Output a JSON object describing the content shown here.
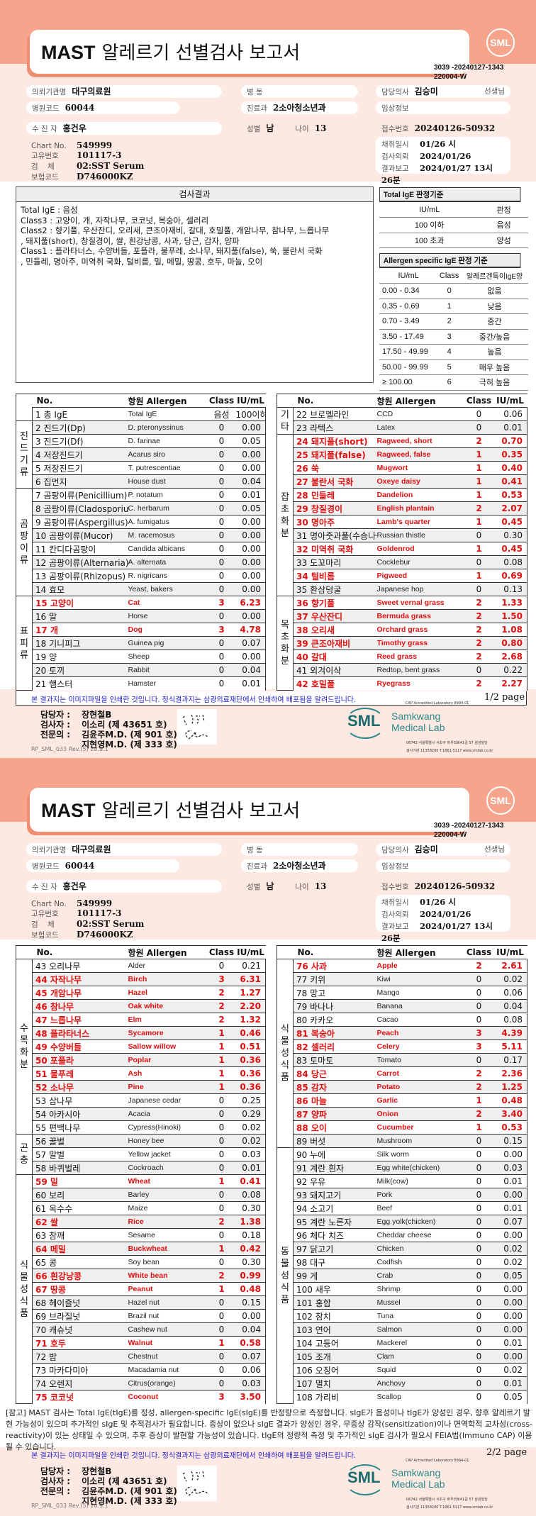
{
  "header": {
    "title_bold": "MAST",
    "title_rest": "알레르기 선별검사 보고서",
    "logo": "SML",
    "doc_id_1": "3039 -20240127-1343",
    "doc_id_2": "220004-W"
  },
  "patient": {
    "institution_label": "의뢰기관명",
    "institution": "대구의료원",
    "hospital_code_label": "병원코드",
    "hospital_code": "60044",
    "name_label": "수 진 자",
    "name": "홍건우",
    "chart_label": "Chart No.",
    "chart": "549999",
    "unique_label": "고유번호",
    "unique": "101117-3",
    "specimen_label": "검    체",
    "specimen": "02:SST Serum",
    "insurance_label": "보험코드",
    "insurance": "D746000KZ",
    "ward_label": "병 동",
    "ward": "",
    "dept_label": "진료과",
    "dept": "2소아청소년과",
    "sex_label": "성별",
    "sex": "남",
    "age_label": "나이",
    "age": "13",
    "doctor_label": "담당의사",
    "doctor": "김승미",
    "doctor_suffix": "선생님",
    "clinical_label": "임상정보",
    "clinical": "",
    "receipt_label": "접수번호",
    "receipt": "20240126-50932",
    "collected_label": "채취일시",
    "collected": "01/26 시",
    "requested_label": "검사의뢰",
    "requested": "2024/01/26",
    "reported_label": "결과보고",
    "reported": "2024/01/27  13시 26분"
  },
  "results": {
    "title": "검사결과",
    "lines": [
      "Total IgE : 음성",
      "Class3 : 고양이, 개, 자작나무, 코코넛, 복숭아, 셀러리",
      "Class2 : 향기풀, 우산잔디, 오리새, 큰조아재비, 갈대, 호밀풀, 개암나무, 참나무, 느릅나무",
      "           , 돼지풀(short), 창질경이, 쌀, 흰강낭콩, 사과, 당근, 감자, 양파",
      "Class1 : 플라타너스, 수양버들, 포플라, 물푸레, 소나무, 돼지풀(false), 쑥, 불란서 국화",
      "           , 민들레, 명아주, 미역취 국화, 털비름, 밀, 메밀, 땅콩, 호두, 마늘, 오이"
    ]
  },
  "criteria": {
    "total": {
      "title": "Total IgE 판정기준",
      "cols": [
        "IU/mL",
        "판정"
      ],
      "rows": [
        [
          "100 이하",
          "음성"
        ],
        [
          "100 초과",
          "양성"
        ]
      ]
    },
    "specific": {
      "title": "Allergen specific IgE 판정 기준",
      "cols": [
        "IU/mL",
        "Class",
        "알레르겐특이IgE양"
      ],
      "rows": [
        [
          "0.00 - 0.34",
          "0",
          "없음"
        ],
        [
          "0.35 - 0.69",
          "1",
          "낮음"
        ],
        [
          "0.70 - 3.49",
          "2",
          "중간"
        ],
        [
          "3.50 - 17.49",
          "3",
          "중간/높음"
        ],
        [
          "17.50 - 49.99",
          "4",
          "높음"
        ],
        [
          "50.00 - 99.99",
          "5",
          "매우 높음"
        ],
        [
          "≥ 100.00",
          "6",
          "극히 높음"
        ]
      ]
    }
  },
  "table_headers": {
    "no": "No.",
    "allergen": "항원 Allergen",
    "class": "Class",
    "iu": "IU/mL"
  },
  "colors": {
    "positive": "#e01010",
    "band": "#f6a48b",
    "background": "#fde9e1",
    "brand": "#2a8a8c"
  },
  "pages": [
    {
      "page_label": "1/2 page",
      "left": [
        {
          "group": "",
          "rows": [
            [
              "1",
              "총 IgE",
              "Total IgE",
              "음성",
              "100이하"
            ]
          ]
        },
        {
          "group": "진드기류",
          "rows": [
            [
              "2",
              "진드기(Dp)",
              "D. pteronyssinus",
              "0",
              "0.00"
            ],
            [
              "3",
              "진드기(Df)",
              "D. farinae",
              "0",
              "0.05"
            ],
            [
              "4",
              "저장진드기",
              "Acarus siro",
              "0",
              "0.00"
            ],
            [
              "5",
              "저장진드기",
              "T. putrescentiae",
              "0",
              "0.00"
            ],
            [
              "6",
              "집먼지",
              "House dust",
              "0",
              "0.04"
            ]
          ]
        },
        {
          "group": "곰팡이류",
          "rows": [
            [
              "7",
              "곰팡이류(Penicillium)",
              "P. notatum",
              "0",
              "0.01"
            ],
            [
              "8",
              "곰팡이류(Cladosporium)",
              "C. herbarum",
              "0",
              "0.05"
            ],
            [
              "9",
              "곰팡이류(Aspergillus)",
              "A. fumigatus",
              "0",
              "0.00"
            ],
            [
              "10",
              "곰팡이류(Mucor)",
              "M. racemosus",
              "0",
              "0.00"
            ],
            [
              "11",
              "칸디다곰팡이",
              "Candida albicans",
              "0",
              "0.00"
            ],
            [
              "12",
              "곰팡이류(Alternaria)",
              "A. alternata",
              "0",
              "0.00"
            ],
            [
              "13",
              "곰팡이류(Rhizopus)",
              "R. nigricans",
              "0",
              "0.00"
            ],
            [
              "14",
              "효모",
              "Yeast, bakers",
              "0",
              "0.00"
            ]
          ]
        },
        {
          "group": "표피류",
          "rows": [
            [
              "15",
              "고양이",
              "Cat",
              "3",
              "6.23"
            ],
            [
              "16",
              "말",
              "Horse",
              "0",
              "0.00"
            ],
            [
              "17",
              "개",
              "Dog",
              "3",
              "4.78"
            ],
            [
              "18",
              "기니피그",
              "Guinea pig",
              "0",
              "0.07"
            ],
            [
              "19",
              "양",
              "Sheep",
              "0",
              "0.00"
            ],
            [
              "20",
              "토끼",
              "Rabbit",
              "0",
              "0.04"
            ],
            [
              "21",
              "햄스터",
              "Hamster",
              "0",
              "0.01"
            ]
          ]
        }
      ],
      "right": [
        {
          "group": "기타",
          "rows": [
            [
              "22",
              "브로멜라인",
              "CCD",
              "0",
              "0.06"
            ],
            [
              "23",
              "라텍스",
              "Latex",
              "0",
              "0.01"
            ]
          ]
        },
        {
          "group": "잡초화분",
          "rows": [
            [
              "24",
              "돼지풀(short)",
              "Ragweed, short",
              "2",
              "0.70"
            ],
            [
              "25",
              "돼지풀(false)",
              "Ragweed, false",
              "1",
              "0.35"
            ],
            [
              "26",
              "쑥",
              "Mugwort",
              "1",
              "0.40"
            ],
            [
              "27",
              "불란서 국화",
              "Oxeye daisy",
              "1",
              "0.41"
            ],
            [
              "28",
              "민들레",
              "Dandelion",
              "1",
              "0.53"
            ],
            [
              "29",
              "창질경이",
              "English plantain",
              "2",
              "2.07"
            ],
            [
              "30",
              "명아주",
              "Lamb's quarter",
              "1",
              "0.45"
            ],
            [
              "31",
              "명아줏과풀(수송나물류)",
              "Russian thistle",
              "0",
              "0.30"
            ],
            [
              "32",
              "미역취 국화",
              "Goldenrod",
              "1",
              "0.45"
            ],
            [
              "33",
              "도꼬마리",
              "Cocklebur",
              "0",
              "0.08"
            ],
            [
              "34",
              "털비름",
              "Pigweed",
              "1",
              "0.69"
            ],
            [
              "35",
              "환삼덩굴",
              "Japanese hop",
              "0",
              "0.13"
            ]
          ]
        },
        {
          "group": "목초화분",
          "rows": [
            [
              "36",
              "향기풀",
              "Sweet vernal grass",
              "2",
              "1.33"
            ],
            [
              "37",
              "우산잔디",
              "Bermuda grass",
              "2",
              "1.50"
            ],
            [
              "38",
              "오리새",
              "Orchard grass",
              "2",
              "1.08"
            ],
            [
              "39",
              "큰조아재비",
              "Timothy grass",
              "2",
              "0.80"
            ],
            [
              "40",
              "갈대",
              "Reed grass",
              "2",
              "2.68"
            ],
            [
              "41",
              "외겨이삭",
              "Redtop, bent grass",
              "0",
              "0.22"
            ],
            [
              "42",
              "호밀풀",
              "Ryegrass",
              "2",
              "2.27"
            ]
          ]
        }
      ]
    },
    {
      "page_label": "2/2 page",
      "left": [
        {
          "group": "수목화분",
          "rows": [
            [
              "43",
              "오리나무",
              "Alder",
              "0",
              "0.21"
            ],
            [
              "44",
              "자작나무",
              "Birch",
              "3",
              "6.31"
            ],
            [
              "45",
              "개암나무",
              "Hazel",
              "2",
              "1.27"
            ],
            [
              "46",
              "참나무",
              "Oak white",
              "2",
              "2.20"
            ],
            [
              "47",
              "느릅나무",
              "Elm",
              "2",
              "1.32"
            ],
            [
              "48",
              "플라타너스",
              "Sycamore",
              "1",
              "0.46"
            ],
            [
              "49",
              "수양버들",
              "Sallow willow",
              "1",
              "0.51"
            ],
            [
              "50",
              "포플라",
              "Poplar",
              "1",
              "0.36"
            ],
            [
              "51",
              "물푸레",
              "Ash",
              "1",
              "0.36"
            ],
            [
              "52",
              "소나무",
              "Pine",
              "1",
              "0.36"
            ],
            [
              "53",
              "삼나무",
              "Japanese cedar",
              "0",
              "0.25"
            ],
            [
              "54",
              "아카시아",
              "Acacia",
              "0",
              "0.29"
            ],
            [
              "55",
              "편백나무",
              "Cypress(Hinoki)",
              "0",
              "0.02"
            ]
          ]
        },
        {
          "group": "곤충",
          "rows": [
            [
              "56",
              "꿀벌",
              "Honey bee",
              "0",
              "0.02"
            ],
            [
              "57",
              "말벌",
              "Yellow jacket",
              "0",
              "0.03"
            ],
            [
              "58",
              "바퀴벌레",
              "Cockroach",
              "0",
              "0.01"
            ]
          ]
        },
        {
          "group": "식물성식품",
          "rows": [
            [
              "59",
              "밀",
              "Wheat",
              "1",
              "0.41"
            ],
            [
              "60",
              "보리",
              "Barley",
              "0",
              "0.08"
            ],
            [
              "61",
              "옥수수",
              "Maize",
              "0",
              "0.30"
            ],
            [
              "62",
              "쌀",
              "Rice",
              "2",
              "1.38"
            ],
            [
              "63",
              "참깨",
              "Sesame",
              "0",
              "0.18"
            ],
            [
              "64",
              "메밀",
              "Buckwheat",
              "1",
              "0.42"
            ],
            [
              "65",
              "콩",
              "Soy bean",
              "0",
              "0.30"
            ],
            [
              "66",
              "흰강낭콩",
              "White bean",
              "2",
              "0.99"
            ],
            [
              "67",
              "땅콩",
              "Peanut",
              "1",
              "0.48"
            ],
            [
              "68",
              "헤이즐넛",
              "Hazel nut",
              "0",
              "0.15"
            ],
            [
              "69",
              "브라질넛",
              "Brazil nut",
              "0",
              "0.00"
            ],
            [
              "70",
              "캐슈넛",
              "Cashew nut",
              "0",
              "0.04"
            ],
            [
              "71",
              "호두",
              "Walnut",
              "1",
              "0.58"
            ],
            [
              "72",
              "밤",
              "Chestnut",
              "0",
              "0.07"
            ],
            [
              "73",
              "마카다미아",
              "Macadamia nut",
              "0",
              "0.06"
            ],
            [
              "74",
              "오렌지",
              "Citrus(orange)",
              "0",
              "0.03"
            ],
            [
              "75",
              "코코넛",
              "Coconut",
              "3",
              "3.50"
            ]
          ]
        }
      ],
      "right": [
        {
          "group": "식물성식품",
          "rows": [
            [
              "76",
              "사과",
              "Apple",
              "2",
              "2.61"
            ],
            [
              "77",
              "키위",
              "Kiwi",
              "0",
              "0.02"
            ],
            [
              "78",
              "망고",
              "Mango",
              "0",
              "0.06"
            ],
            [
              "79",
              "바나나",
              "Banana",
              "0",
              "0.04"
            ],
            [
              "80",
              "카카오",
              "Cacao",
              "0",
              "0.08"
            ],
            [
              "81",
              "복숭아",
              "Peach",
              "3",
              "4.39"
            ],
            [
              "82",
              "셀러리",
              "Celery",
              "3",
              "5.11"
            ],
            [
              "83",
              "토마토",
              "Tomato",
              "0",
              "0.17"
            ],
            [
              "84",
              "당근",
              "Carrot",
              "2",
              "2.36"
            ],
            [
              "85",
              "감자",
              "Potato",
              "2",
              "1.25"
            ],
            [
              "86",
              "마늘",
              "Garlic",
              "1",
              "0.48"
            ],
            [
              "87",
              "양파",
              "Onion",
              "2",
              "3.40"
            ],
            [
              "88",
              "오이",
              "Cucumber",
              "1",
              "0.53"
            ],
            [
              "89",
              "버섯",
              "Mushroom",
              "0",
              "0.15"
            ]
          ]
        },
        {
          "group": "동물성식품",
          "rows": [
            [
              "90",
              "누에",
              "Silk worm",
              "0",
              "0.00"
            ],
            [
              "91",
              "계란 흰자",
              "Egg white(chicken)",
              "0",
              "0.03"
            ],
            [
              "92",
              "우유",
              "Milk(cow)",
              "0",
              "0.01"
            ],
            [
              "93",
              "돼지고기",
              "Pork",
              "0",
              "0.00"
            ],
            [
              "94",
              "소고기",
              "Beef",
              "0",
              "0.01"
            ],
            [
              "95",
              "계란 노른자",
              "Egg yolk(chicken)",
              "0",
              "0.07"
            ],
            [
              "96",
              "체다 치즈",
              "Cheddar cheese",
              "0",
              "0.00"
            ],
            [
              "97",
              "닭고기",
              "Chicken",
              "0",
              "0.02"
            ],
            [
              "98",
              "대구",
              "Codfish",
              "0",
              "0.02"
            ],
            [
              "99",
              "게",
              "Crab",
              "0",
              "0.05"
            ],
            [
              "100",
              "새우",
              "Shrimp",
              "0",
              "0.00"
            ],
            [
              "101",
              "홍합",
              "Mussel",
              "0",
              "0.00"
            ],
            [
              "102",
              "참치",
              "Tuna",
              "0",
              "0.00"
            ],
            [
              "103",
              "연어",
              "Salmon",
              "0",
              "0.00"
            ],
            [
              "104",
              "고등어",
              "Mackerel",
              "0",
              "0.01"
            ],
            [
              "105",
              "조개",
              "Clam",
              "0",
              "0.00"
            ],
            [
              "106",
              "오징어",
              "Squid",
              "0",
              "0.02"
            ],
            [
              "107",
              "멸치",
              "Anchovy",
              "0",
              "0.01"
            ],
            [
              "108",
              "가리비",
              "Scallop",
              "0",
              "0.05"
            ]
          ]
        }
      ]
    }
  ],
  "reference_note": "[참고] MAST 검사는 Total IgE(tIgE)를 정성, allergen-specific IgE(sIgE)를 반정량으로 측정합니다. sIgE가 음성이나 tIgE가 양성인 경우, 향후 알레르기 발현 가능성이 있으며 추가적인 sIgE 및 추적검사가 필요합니다. 증상이 없으나 sIgE 결과가 양성인 경우, 무증상 감작(sensitization)이나 면역학적 교차성(cross-reactivity)이 있는 상태일 수 있으며, 추후 증상이 발현할 가능성이 있습니다. tIgE의 정량적 측정 및 추가적인 sIgE 검사가 필요시 FEIA법(Immuno CAP) 이용될 수 있습니다.",
  "footer": {
    "notice": "본 결과지는 이미지파일을 인쇄한 것입니다. 정식결과지는 삼광의료재단에서 인쇄하여 배포됨을 알려드립니다.",
    "cap": "CAP Accredited Laboratory 8994-01",
    "manager_label": "담당자 :",
    "manager": "장현철B",
    "tester_label": "검사자 :",
    "tester": "이소리 (제 43651 호)",
    "specialist_label": "전문의 :",
    "specialist_1": "김윤주M.D. (제 901 호)",
    "specialist_2": "지현영M.D. (제 333 호)",
    "form_code": "RP_SML_033 Rev.(5) 20.9.1",
    "lab_logo": "SML",
    "lab_name_1": "Samkwang",
    "lab_name_2": "Medical Lab",
    "address": "06742 서울특별시 서초구 바우뫼로41길 57 삼광빌딩",
    "contact": "검사기관 11358200 T.1661-5117 www.smlab.co.kr"
  }
}
